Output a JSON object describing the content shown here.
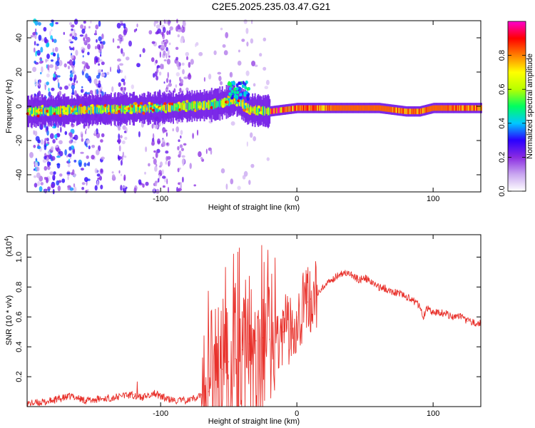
{
  "title": "C2E5.2025.235.03.47.G21",
  "chart_data": [
    {
      "type": "heatmap",
      "title": "C2E5.2025.235.03.47.G21",
      "xlabel": "Height of straight line (km)",
      "ylabel": "Frequency (Hz)",
      "xlim": [
        -198,
        135
      ],
      "ylim": [
        -50,
        50
      ],
      "x_ticks": [
        -100,
        0,
        100
      ],
      "y_ticks": [
        -40,
        -20,
        0,
        20,
        40
      ],
      "colorbar": {
        "label": "Normalized spectral amplitude",
        "range": [
          0,
          1
        ],
        "ticks": [
          0.0,
          0.2,
          0.4,
          0.6,
          0.8
        ],
        "colors": [
          "#ffffff",
          "#c9a6f0",
          "#8a2be2",
          "#2a00ff",
          "#00c8ff",
          "#00ff60",
          "#b8ff00",
          "#ffff00",
          "#ff8000",
          "#ff0000",
          "#ff00d0"
        ]
      },
      "ridge": {
        "description_values": "dominant frequency (Hz) vs height (km)",
        "x": [
          -198,
          -150,
          -100,
          -60,
          -45,
          -35,
          -20,
          -10,
          0,
          20,
          60,
          80,
          90,
          100,
          135
        ],
        "y": [
          -3,
          -2,
          -1,
          1,
          4,
          -2,
          -3,
          -2,
          -1,
          -1,
          -1,
          -3,
          -3,
          -1,
          -1
        ]
      }
    },
    {
      "type": "line",
      "xlabel": "Height of straight line (km)",
      "ylabel": "SNR (10 * v/v)",
      "ylabel_multiplier": "(x10",
      "ylabel_multiplier_exp": "4",
      "ylabel_multiplier_close": ")",
      "xlim": [
        -198,
        135
      ],
      "ylim": [
        0,
        1.15
      ],
      "x_ticks": [
        -100,
        0,
        100
      ],
      "y_ticks": [
        0.2,
        0.4,
        0.6,
        0.8,
        1.0
      ],
      "y_tick_labels": [
        "0.2",
        "0.4",
        "0.6",
        "0.8",
        "1.0"
      ],
      "series": [
        {
          "name": "SNR",
          "color": "#e8302a",
          "x": [
            -198,
            -185,
            -175,
            -165,
            -155,
            -145,
            -135,
            -125,
            -120,
            -115,
            -110,
            -105,
            -100,
            -95,
            -90,
            -80,
            -75,
            -70,
            -65,
            -60,
            -55,
            -50,
            -45,
            -40,
            -35,
            -30,
            -25,
            -20,
            -15,
            -10,
            -5,
            0,
            5,
            8,
            10,
            15,
            20,
            25,
            30,
            35,
            40,
            45,
            50,
            55,
            60,
            65,
            70,
            75,
            80,
            85,
            90,
            93,
            95,
            98,
            100,
            105,
            110,
            115,
            120,
            125,
            130,
            135
          ],
          "y": [
            0.02,
            0.03,
            0.05,
            0.07,
            0.04,
            0.05,
            0.06,
            0.07,
            0.08,
            0.06,
            0.07,
            0.09,
            0.07,
            0.05,
            0.04,
            0.04,
            0.06,
            0.08,
            0.1,
            0.18,
            0.25,
            0.3,
            0.32,
            0.38,
            0.42,
            0.44,
            0.46,
            0.45,
            0.48,
            0.5,
            0.52,
            0.6,
            0.68,
            0.7,
            0.72,
            0.75,
            0.8,
            0.84,
            0.88,
            0.9,
            0.88,
            0.85,
            0.86,
            0.83,
            0.8,
            0.79,
            0.77,
            0.76,
            0.74,
            0.71,
            0.68,
            0.6,
            0.66,
            0.64,
            0.63,
            0.63,
            0.62,
            0.6,
            0.6,
            0.57,
            0.56,
            0.56
          ]
        }
      ]
    }
  ]
}
